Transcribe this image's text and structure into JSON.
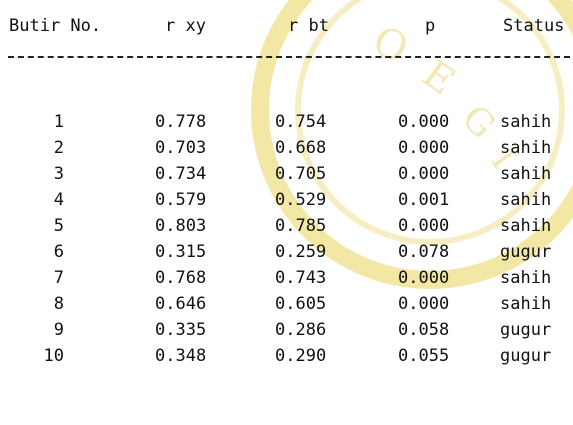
{
  "table": {
    "headers": {
      "butir": "Butir No.",
      "rxy": "r xy",
      "rbt": "r bt",
      "p": "p",
      "status": "Status"
    },
    "rows": [
      {
        "no": "1",
        "rxy": "0.778",
        "rbt": "0.754",
        "p": "0.000",
        "status": "sahih"
      },
      {
        "no": "2",
        "rxy": "0.703",
        "rbt": "0.668",
        "p": "0.000",
        "status": "sahih"
      },
      {
        "no": "3",
        "rxy": "0.734",
        "rbt": "0.705",
        "p": "0.000",
        "status": "sahih"
      },
      {
        "no": "4",
        "rxy": "0.579",
        "rbt": "0.529",
        "p": "0.001",
        "status": "sahih"
      },
      {
        "no": "5",
        "rxy": "0.803",
        "rbt": "0.785",
        "p": "0.000",
        "status": "sahih"
      },
      {
        "no": "6",
        "rxy": "0.315",
        "rbt": "0.259",
        "p": "0.078",
        "status": "gugur"
      },
      {
        "no": "7",
        "rxy": "0.768",
        "rbt": "0.743",
        "p": "0.000",
        "status": "sahih"
      },
      {
        "no": "8",
        "rxy": "0.646",
        "rbt": "0.605",
        "p": "0.000",
        "status": "sahih"
      },
      {
        "no": "9",
        "rxy": "0.335",
        "rbt": "0.286",
        "p": "0.058",
        "status": "gugur"
      },
      {
        "no": "10",
        "rxy": "0.348",
        "rbt": "0.290",
        "p": "0.055",
        "status": "gugur"
      }
    ]
  },
  "colors": {
    "text": "#111111",
    "watermark": "#f3e7a6"
  }
}
